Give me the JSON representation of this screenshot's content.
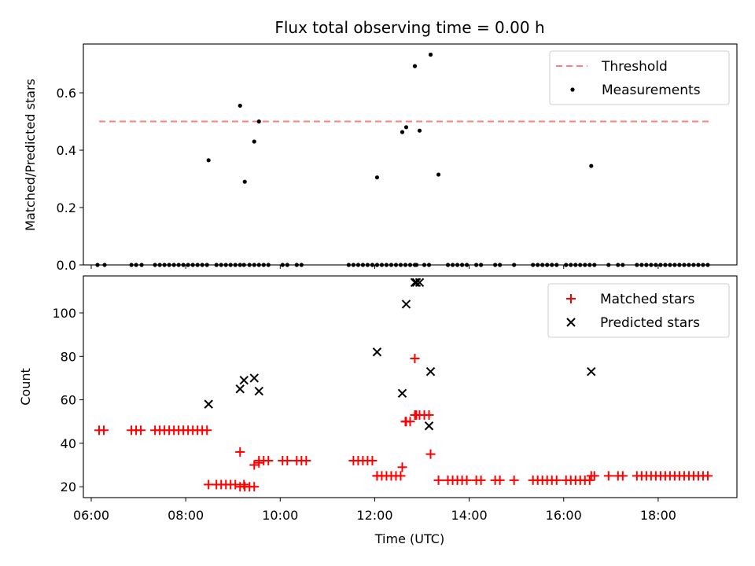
{
  "chart_data": [
    {
      "type": "scatter",
      "title": "Flux total observing time = 0.00 h",
      "xlabel": "",
      "ylabel": "Matched/Predicted stars",
      "xlim": [
        "05:50",
        "19:40"
      ],
      "ylim": [
        0,
        0.77
      ],
      "yticks": [
        0.0,
        0.2,
        0.4,
        0.6
      ],
      "ytick_labels": [
        "0.0",
        "0.2",
        "0.4",
        "0.6"
      ],
      "legend": "top-right",
      "series": [
        {
          "name": "Threshold",
          "kind": "dashed-line",
          "color": "#ff7f7f",
          "x": [
            "06:10",
            "19:05"
          ],
          "y": [
            0.5,
            0.5
          ]
        },
        {
          "name": "Measurements",
          "kind": "dot",
          "color": "#000000",
          "x": [
            "06:08",
            "06:17",
            "06:51",
            "06:57",
            "07:04",
            "07:21",
            "07:27",
            "07:33",
            "07:39",
            "07:45",
            "07:51",
            "07:57",
            "08:03",
            "08:09",
            "08:15",
            "08:21",
            "08:27",
            "08:29",
            "08:39",
            "08:45",
            "08:51",
            "08:57",
            "09:03",
            "09:09",
            "09:09",
            "09:14",
            "09:15",
            "09:21",
            "09:27",
            "09:27",
            "09:33",
            "09:33",
            "09:39",
            "09:45",
            "10:03",
            "10:09",
            "10:21",
            "10:27",
            "11:27",
            "11:33",
            "11:39",
            "11:45",
            "11:51",
            "11:57",
            "12:03",
            "12:03",
            "12:09",
            "12:15",
            "12:21",
            "12:27",
            "12:33",
            "12:35",
            "12:39",
            "12:40",
            "12:45",
            "12:51",
            "12:51",
            "12:53",
            "12:57",
            "13:03",
            "13:09",
            "13:11",
            "13:21",
            "13:33",
            "13:39",
            "13:45",
            "13:51",
            "13:57",
            "14:09",
            "14:15",
            "14:33",
            "14:39",
            "14:57",
            "15:21",
            "15:27",
            "15:33",
            "15:39",
            "15:45",
            "15:51",
            "16:03",
            "16:09",
            "16:15",
            "16:21",
            "16:27",
            "16:33",
            "16:35",
            "16:39",
            "16:57",
            "17:09",
            "17:15",
            "17:33",
            "17:39",
            "17:45",
            "17:51",
            "17:57",
            "18:03",
            "18:09",
            "18:15",
            "18:21",
            "18:27",
            "18:33",
            "18:39",
            "18:45",
            "18:51",
            "18:57",
            "19:03"
          ],
          "y": [
            0,
            0,
            0,
            0,
            0,
            0,
            0,
            0,
            0,
            0,
            0,
            0,
            0,
            0,
            0,
            0,
            0,
            0.365,
            0,
            0,
            0,
            0,
            0,
            0,
            0.555,
            0,
            0.29,
            0,
            0,
            0.43,
            0,
            0.5,
            0,
            0,
            0,
            0,
            0,
            0,
            0,
            0,
            0,
            0,
            0,
            0,
            0,
            0.305,
            0,
            0,
            0,
            0,
            0,
            0.463,
            0,
            0.48,
            0,
            0,
            0.693,
            0,
            0.468,
            0,
            0,
            0.733,
            0.315,
            0,
            0,
            0,
            0,
            0,
            0,
            0,
            0,
            0,
            0,
            0,
            0,
            0,
            0,
            0,
            0,
            0,
            0,
            0,
            0,
            0,
            0,
            0.345,
            0,
            0,
            0,
            0,
            0,
            0,
            0,
            0,
            0,
            0,
            0,
            0,
            0,
            0,
            0,
            0,
            0,
            0,
            0,
            0
          ]
        }
      ]
    },
    {
      "type": "scatter",
      "title": "",
      "xlabel": "Time (UTC)",
      "ylabel": "Count",
      "xlim": [
        "05:50",
        "19:40"
      ],
      "ylim": [
        15,
        117
      ],
      "yticks": [
        20,
        40,
        60,
        80,
        100
      ],
      "ytick_labels": [
        "20",
        "40",
        "60",
        "80",
        "100"
      ],
      "xticks": [
        "06:00",
        "08:00",
        "10:00",
        "12:00",
        "14:00",
        "16:00",
        "18:00"
      ],
      "legend": "top-right",
      "series": [
        {
          "name": "Matched stars",
          "kind": "plus",
          "color": "#ff0000",
          "x": [
            "06:10",
            "06:16",
            "06:51",
            "06:57",
            "07:03",
            "07:21",
            "07:27",
            "07:33",
            "07:39",
            "07:45",
            "07:51",
            "07:57",
            "08:03",
            "08:09",
            "08:15",
            "08:21",
            "08:27",
            "08:29",
            "08:39",
            "08:45",
            "08:51",
            "08:57",
            "09:03",
            "09:09",
            "09:09",
            "09:14",
            "09:15",
            "09:21",
            "09:27",
            "09:27",
            "09:33",
            "09:33",
            "09:39",
            "09:45",
            "10:03",
            "10:09",
            "10:21",
            "10:27",
            "10:33",
            "11:33",
            "11:39",
            "11:45",
            "11:51",
            "11:57",
            "12:03",
            "12:03",
            "12:09",
            "12:15",
            "12:21",
            "12:27",
            "12:33",
            "12:35",
            "12:39",
            "12:40",
            "12:45",
            "12:51",
            "12:51",
            "12:53",
            "12:57",
            "13:03",
            "13:09",
            "13:11",
            "13:21",
            "13:33",
            "13:39",
            "13:45",
            "13:51",
            "13:57",
            "14:09",
            "14:15",
            "14:33",
            "14:39",
            "14:57",
            "15:21",
            "15:27",
            "15:33",
            "15:39",
            "15:45",
            "15:51",
            "16:03",
            "16:09",
            "16:15",
            "16:21",
            "16:27",
            "16:33",
            "16:35",
            "16:39",
            "16:57",
            "17:09",
            "17:15",
            "17:33",
            "17:39",
            "17:45",
            "17:51",
            "17:57",
            "18:03",
            "18:09",
            "18:15",
            "18:21",
            "18:27",
            "18:33",
            "18:39",
            "18:45",
            "18:51",
            "18:57",
            "19:03"
          ],
          "y": [
            46,
            46,
            46,
            46,
            46,
            46,
            46,
            46,
            46,
            46,
            46,
            46,
            46,
            46,
            46,
            46,
            46,
            21,
            21,
            21,
            21,
            21,
            21,
            20,
            36,
            21,
            20,
            20,
            20,
            30,
            31,
            32,
            32,
            32,
            32,
            32,
            32,
            32,
            32,
            32,
            32,
            32,
            32,
            32,
            25,
            25,
            25,
            25,
            25,
            25,
            25,
            29,
            50,
            50,
            50,
            53,
            79,
            53,
            53,
            53,
            53,
            35,
            23,
            23,
            23,
            23,
            23,
            23,
            23,
            23,
            23,
            23,
            23,
            23,
            23,
            23,
            23,
            23,
            23,
            23,
            23,
            23,
            23,
            23,
            23,
            25,
            25,
            25,
            25,
            25,
            25,
            25,
            25,
            25,
            25,
            25,
            25,
            25,
            25,
            25,
            25,
            25,
            25,
            25,
            25,
            25
          ]
        },
        {
          "name": "Predicted stars",
          "kind": "x",
          "color": "#000000",
          "x": [
            "08:29",
            "09:09",
            "09:14",
            "09:27",
            "09:33",
            "12:03",
            "12:35",
            "12:40",
            "12:51",
            "12:53",
            "12:57",
            "13:09",
            "13:11",
            "16:35"
          ],
          "y": [
            58,
            65,
            69,
            70,
            64,
            82,
            63,
            104,
            114,
            114,
            114,
            48,
            73,
            73
          ]
        }
      ]
    }
  ]
}
